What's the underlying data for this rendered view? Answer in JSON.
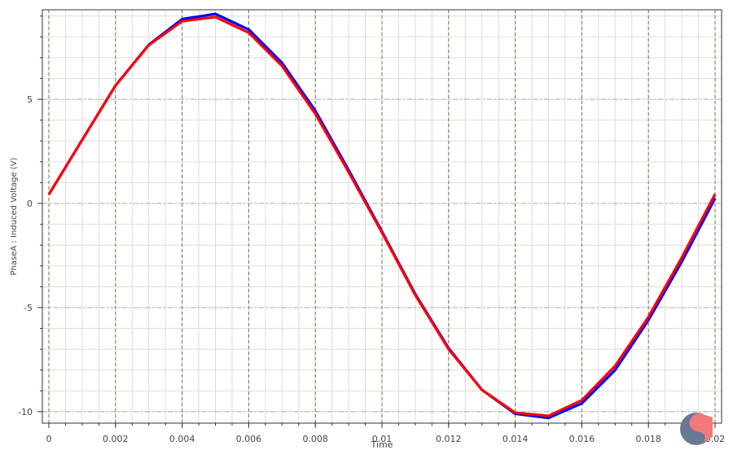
{
  "chart_data": {
    "type": "line",
    "title": "",
    "xlabel": "Time",
    "ylabel": "PhaseA : Induced  Voltage (V)",
    "xlim": [
      0,
      0.02
    ],
    "ylim": [
      -10.55,
      9.3
    ],
    "grid": true,
    "x_ticks": [
      "0",
      "0.002",
      "0.004",
      "0.006",
      "0.008",
      "0.01",
      "0.012",
      "0.014",
      "0.016",
      "0.018",
      "0.02"
    ],
    "y_ticks": [
      "5",
      "0",
      "-5",
      "-10"
    ],
    "x": [
      0,
      0.001,
      0.002,
      0.003,
      0.004,
      0.005,
      0.006,
      0.007,
      0.008,
      0.009,
      0.01,
      0.011,
      0.012,
      0.013,
      0.014,
      0.015,
      0.016,
      0.017,
      0.018,
      0.019,
      0.02
    ],
    "series": [
      {
        "color": "#0000ff",
        "values": [
          0.43,
          3.05,
          5.66,
          7.62,
          8.85,
          9.1,
          8.35,
          6.75,
          4.45,
          1.6,
          -1.35,
          -4.35,
          -6.95,
          -8.95,
          -10.1,
          -10.3,
          -9.6,
          -8.0,
          -5.6,
          -2.8,
          0.25
        ]
      },
      {
        "color": "#ff0000",
        "values": [
          0.43,
          3.05,
          5.66,
          7.6,
          8.75,
          8.95,
          8.2,
          6.6,
          4.3,
          1.5,
          -1.4,
          -4.4,
          -7.0,
          -8.95,
          -10.05,
          -10.2,
          -9.45,
          -7.8,
          -5.45,
          -2.6,
          0.45
        ]
      }
    ]
  }
}
